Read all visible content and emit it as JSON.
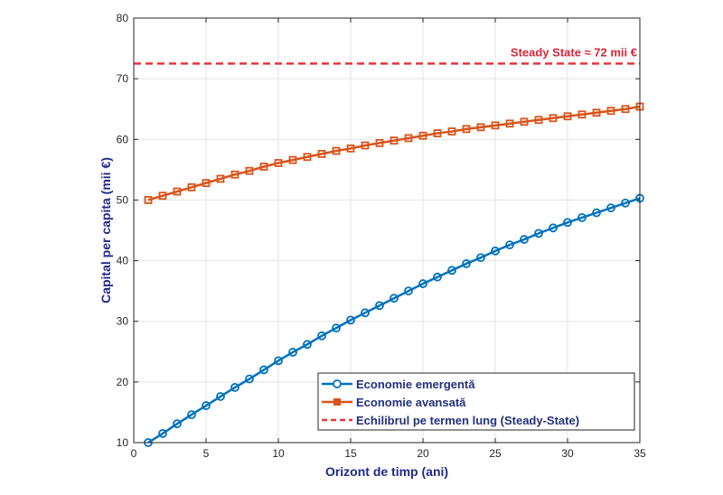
{
  "chart_data": {
    "type": "line",
    "xlabel": "Orizont de timp (ani)",
    "ylabel": "Capital per capita (mii €)",
    "xlim": [
      0,
      35
    ],
    "ylim": [
      10,
      80
    ],
    "xticks": [
      0,
      5,
      10,
      15,
      20,
      25,
      30,
      35
    ],
    "yticks": [
      10,
      20,
      30,
      40,
      50,
      60,
      70,
      80
    ],
    "grid": true,
    "legend_position": "bottom-right",
    "x": [
      1,
      2,
      3,
      4,
      5,
      6,
      7,
      8,
      9,
      10,
      11,
      12,
      13,
      14,
      15,
      16,
      17,
      18,
      19,
      20,
      21,
      22,
      23,
      24,
      25,
      26,
      27,
      28,
      29,
      30,
      31,
      32,
      33,
      34,
      35
    ],
    "series": [
      {
        "name": "Economie emergentă",
        "color": "#0072BD",
        "marker": "circle",
        "values": [
          10.0,
          11.5,
          13.1,
          14.6,
          16.1,
          17.6,
          19.1,
          20.5,
          22.0,
          23.5,
          24.9,
          26.2,
          27.6,
          28.9,
          30.2,
          31.4,
          32.6,
          33.8,
          35.0,
          36.2,
          37.3,
          38.4,
          39.5,
          40.5,
          41.6,
          42.6,
          43.5,
          44.5,
          45.4,
          46.3,
          47.1,
          47.9,
          48.7,
          49.5,
          50.3
        ]
      },
      {
        "name": "Economie avansată",
        "color": "#D95319",
        "marker": "square",
        "values": [
          50.0,
          50.7,
          51.4,
          52.1,
          52.8,
          53.5,
          54.2,
          54.8,
          55.5,
          56.1,
          56.6,
          57.1,
          57.6,
          58.1,
          58.5,
          59.0,
          59.4,
          59.8,
          60.2,
          60.6,
          61.0,
          61.3,
          61.7,
          62.0,
          62.3,
          62.6,
          62.9,
          63.2,
          63.5,
          63.8,
          64.1,
          64.4,
          64.7,
          65.0,
          65.4
        ]
      },
      {
        "name": "Echilibrul pe termen lung (Steady-State)",
        "color": "#E8343C",
        "style": "dashed",
        "value": 72.5
      }
    ],
    "annotation": "Steady State ≈ 72 mii €"
  }
}
